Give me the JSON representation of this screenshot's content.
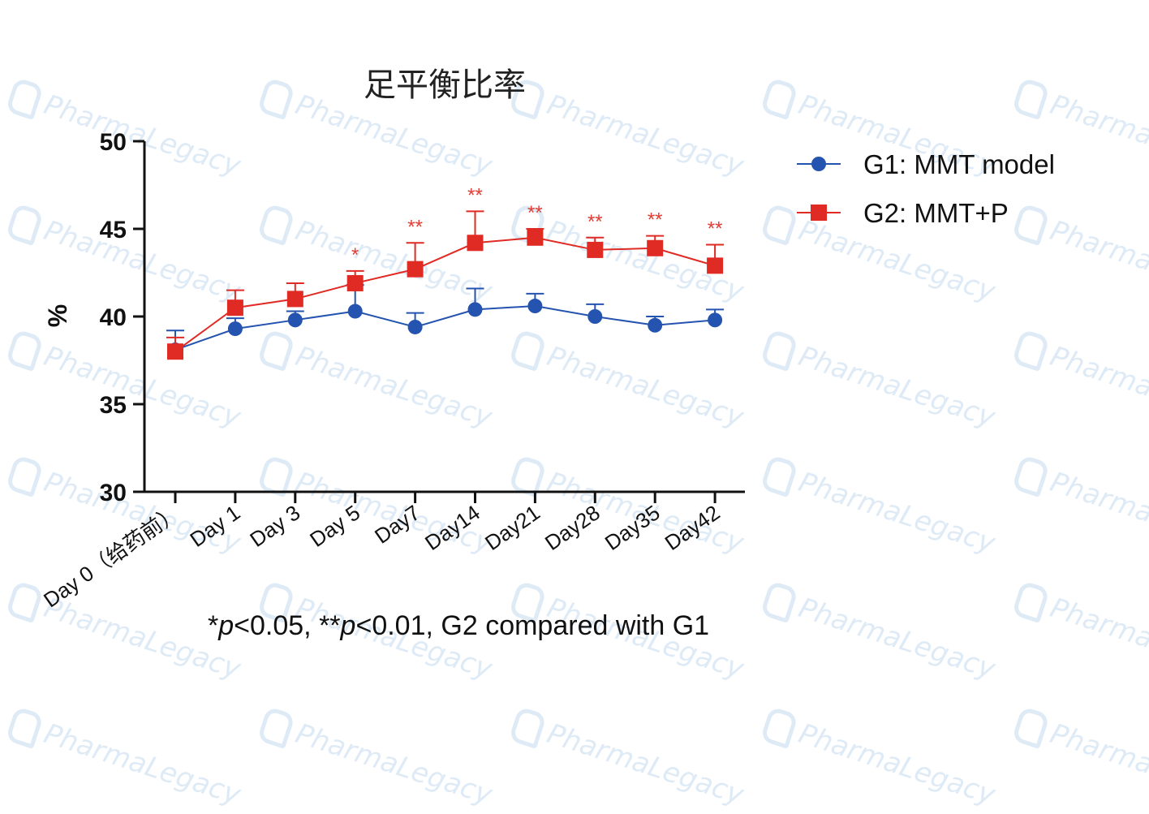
{
  "watermark": "PharmaLegacy",
  "chart_data": {
    "type": "line",
    "title": "足平衡比率",
    "xlabel": "",
    "ylabel": "%",
    "ylim": [
      30,
      50
    ],
    "yticks": [
      "30",
      "35",
      "40",
      "45",
      "50"
    ],
    "categories": [
      "Day 0（给药前）",
      "Day 1",
      "Day 3",
      "Day 5",
      "Day7",
      "Day14",
      "Day21",
      "Day28",
      "Day35",
      "Day42"
    ],
    "series": [
      {
        "name": "G1: MMT model",
        "color": "#2453b0",
        "marker": "circle",
        "values": [
          38.1,
          39.3,
          39.8,
          40.3,
          39.4,
          40.4,
          40.6,
          40.0,
          39.5,
          39.8
        ],
        "error": [
          1.1,
          0.6,
          0.5,
          1.5,
          0.8,
          1.2,
          0.7,
          0.7,
          0.5,
          0.6
        ]
      },
      {
        "name": "G2: MMT+P",
        "color": "#e02a24",
        "marker": "square",
        "values": [
          38.0,
          40.5,
          41.0,
          41.9,
          42.7,
          44.2,
          44.5,
          43.8,
          43.9,
          42.9
        ],
        "error": [
          0.8,
          1.0,
          0.9,
          0.7,
          1.5,
          1.8,
          0.5,
          0.7,
          0.7,
          1.2
        ]
      }
    ],
    "annotations": [
      "",
      "",
      "",
      "*",
      "**",
      "**",
      "**",
      "**",
      "**",
      "**"
    ],
    "legend_position": "top-right",
    "grid": false
  },
  "footnote": {
    "star1": "*",
    "p1": "p",
    "text1": "<0.05, ",
    "star2": "**",
    "p2": "p",
    "text2": "<0.01, G2 compared with G1"
  }
}
